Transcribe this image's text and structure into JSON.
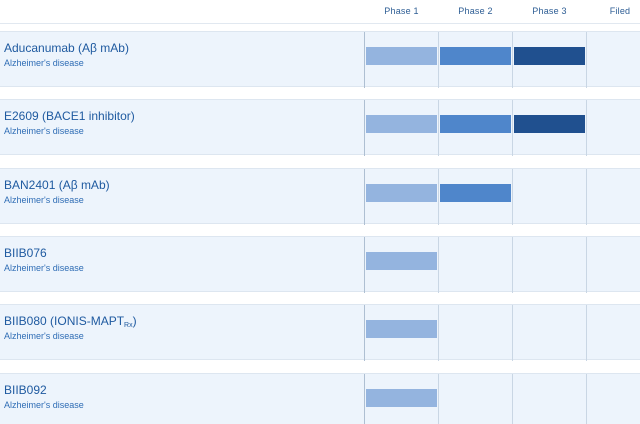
{
  "header": {
    "phases": [
      "Phase 1",
      "Phase 2",
      "Phase 3",
      "Filed"
    ]
  },
  "colors": {
    "phase1": "#94b4df",
    "phase2": "#4f86cb",
    "phase3": "#20508f",
    "row_background": "#edf4fc",
    "text": "#1f5aa0"
  },
  "pipeline": [
    {
      "name": "Aducanumab (Aβ mAb)",
      "indication": "Alzheimer's disease",
      "phases_completed": 3
    },
    {
      "name": "E2609 (BACE1 inhibitor)",
      "indication": "Alzheimer's disease",
      "phases_completed": 3
    },
    {
      "name": "BAN2401 (Aβ mAb)",
      "indication": "Alzheimer's disease",
      "phases_completed": 2
    },
    {
      "name": "BIIB076",
      "indication": "Alzheimer's disease",
      "phases_completed": 1
    },
    {
      "name": "BIIB080 (IONIS-MAPT",
      "name_subscript": "Rx",
      "name_suffix": ")",
      "indication": "Alzheimer's disease",
      "phases_completed": 1
    },
    {
      "name": "BIIB092",
      "indication": "Alzheimer's disease",
      "phases_completed": 1
    }
  ]
}
